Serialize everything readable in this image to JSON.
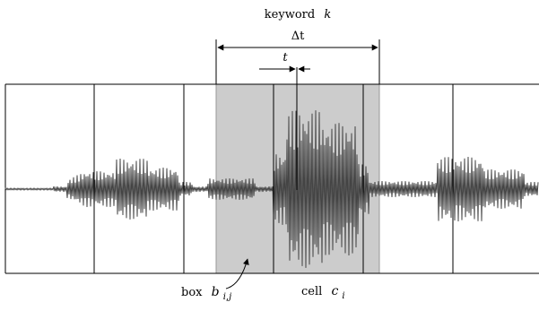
{
  "labels": {
    "keyword": "keyword",
    "keyword_symbol": "k",
    "delta_t": "Δt",
    "t": "t",
    "box": "box",
    "box_symbol": "b",
    "box_subscript": "i,j",
    "cell": "cell",
    "cell_symbol": "c",
    "cell_subscript": "i"
  },
  "colors": {
    "box_fill": "#cccccc",
    "box_border": "#999999",
    "waveform": "#444444",
    "lines": "#000000"
  }
}
